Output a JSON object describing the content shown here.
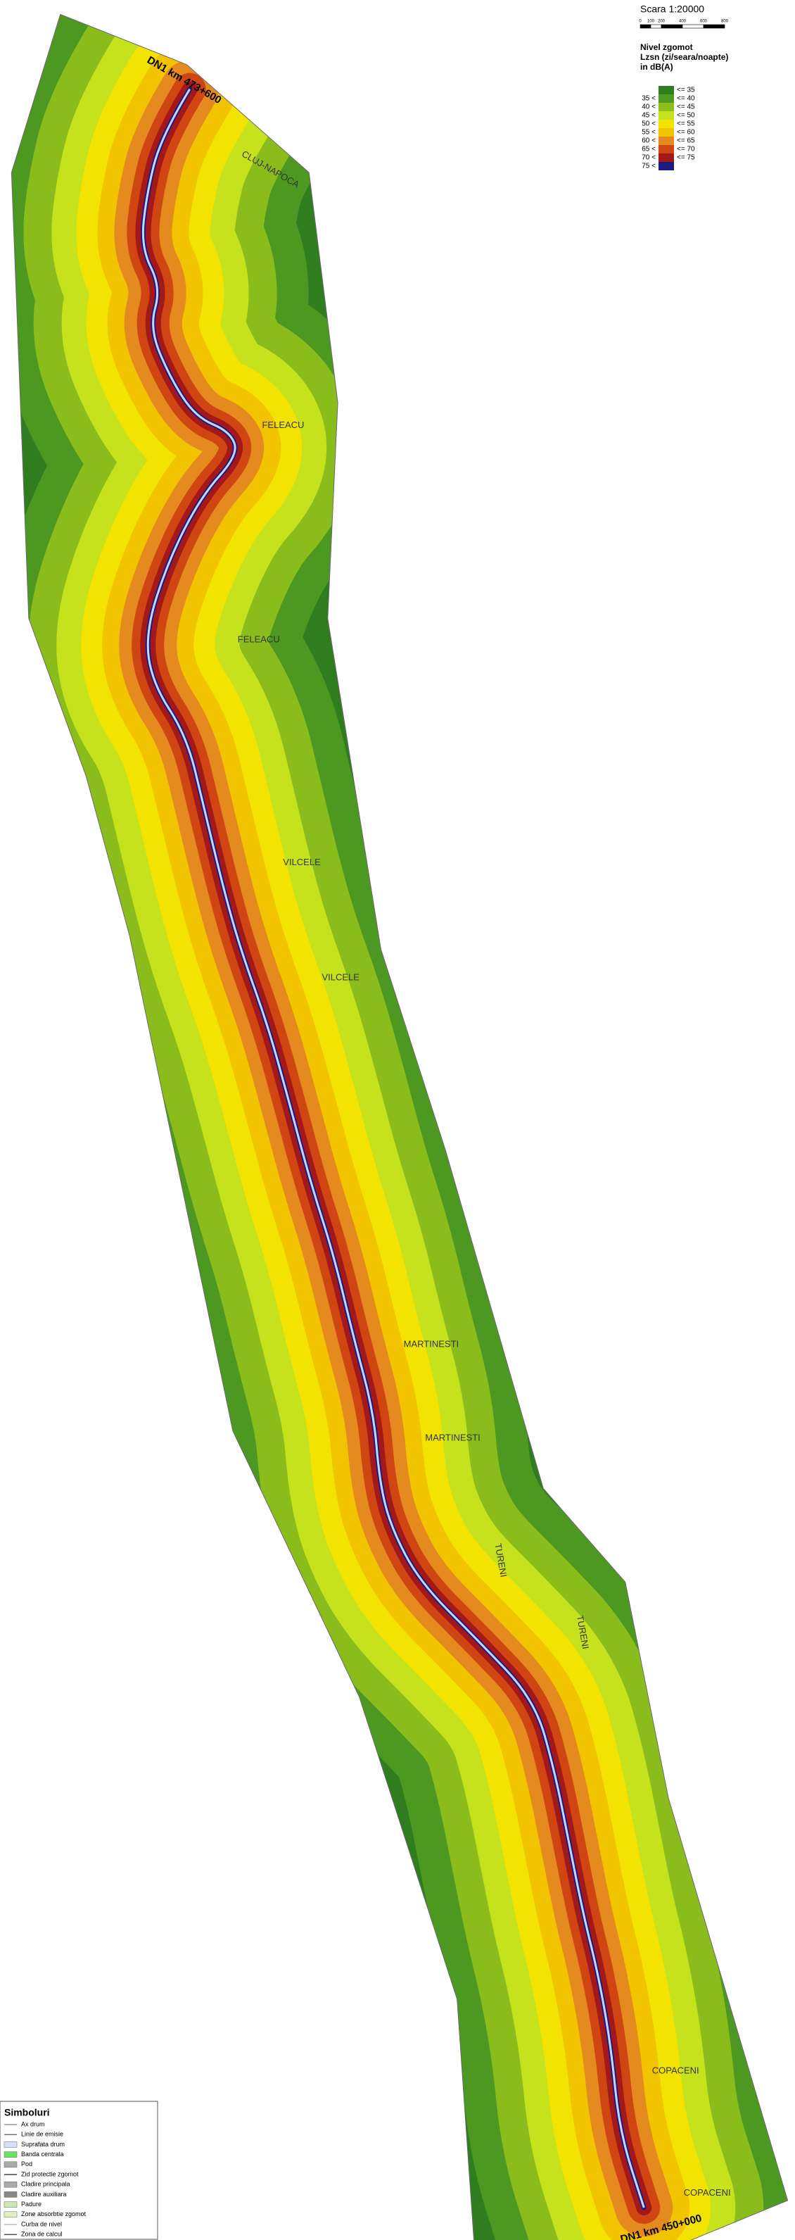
{
  "scale": {
    "title": "Scara 1:20000",
    "ticks": [
      "0",
      "100",
      "200",
      "400",
      "600",
      "800"
    ]
  },
  "legend": {
    "title": [
      "Nivel zgomot",
      "Lzsn (zi/seara/noapte)",
      "in dB(A)"
    ],
    "levels": [
      {
        "upper": "<= 35",
        "color": "#2f7d1f"
      },
      {
        "lower": "35 <",
        "upper": "<= 40",
        "color": "#4e9a22"
      },
      {
        "lower": "40 <",
        "upper": "<= 45",
        "color": "#8dbf1c"
      },
      {
        "lower": "45 <",
        "upper": "<= 50",
        "color": "#c6e21c"
      },
      {
        "lower": "50 <",
        "upper": "<= 55",
        "color": "#f2e400"
      },
      {
        "lower": "55 <",
        "upper": "<= 60",
        "color": "#f2c400"
      },
      {
        "lower": "60 <",
        "upper": "<= 65",
        "color": "#e48a1e"
      },
      {
        "lower": "65 <",
        "upper": "<= 70",
        "color": "#d04612"
      },
      {
        "lower": "70 <",
        "upper": "<= 75",
        "color": "#a5181a"
      },
      {
        "lower": "75 <",
        "color": "#1c1c7e"
      }
    ]
  },
  "road_labels": [
    "DN1 km 473+600",
    "DN1 km 450+000"
  ],
  "places": [
    "CLUJ-NAPOCA",
    "FELEACU",
    "FELEACU",
    "VILCELE",
    "VILCELE",
    "MARTINESTI",
    "MARTINESTI",
    "TURENI",
    "TURENI",
    "COPACENI",
    "COPACENI"
  ],
  "symbols": {
    "title": "Simboluri",
    "items": [
      "Ax drum",
      "Linie de emisie",
      "Suprafata drum",
      "Banda centrala",
      "Pod",
      "Zid protectie zgomot",
      "Cladire principala",
      "Cladire auxiliara",
      "Padure",
      "Zone absorbtie zgomot",
      "Curba de nivel",
      "Zona de calcul"
    ]
  }
}
